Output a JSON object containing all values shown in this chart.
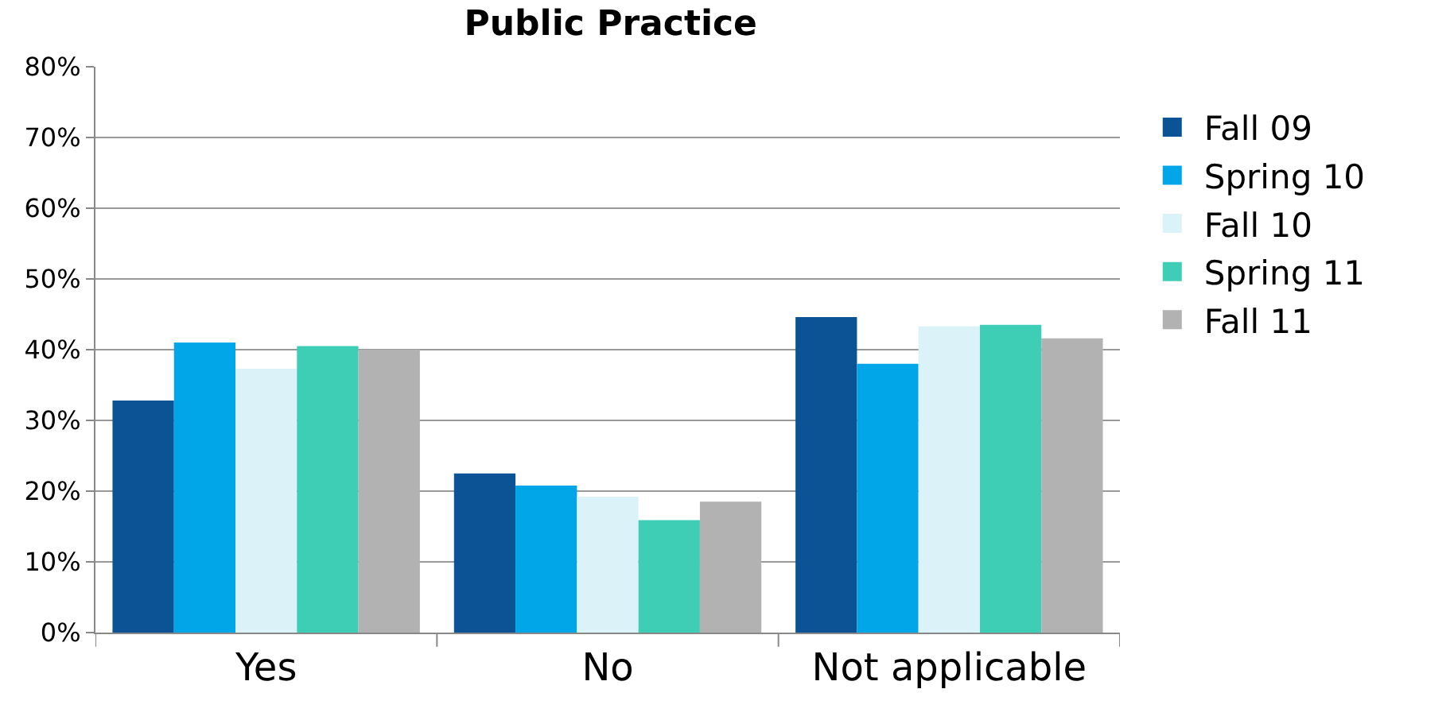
{
  "chart_data": {
    "type": "bar",
    "title": "Public Practice",
    "categories": [
      "Yes",
      "No",
      "Not applicable"
    ],
    "series": [
      {
        "name": "Fall 09",
        "color": "#0b5394",
        "values": [
          32.8,
          22.5,
          44.6
        ]
      },
      {
        "name": "Spring 10",
        "color": "#00a6e8",
        "values": [
          41.0,
          20.8,
          38.0
        ]
      },
      {
        "name": "Fall 10",
        "color": "#dbf3f8",
        "values": [
          37.3,
          19.2,
          43.3
        ]
      },
      {
        "name": "Spring 11",
        "color": "#3ecdb5",
        "values": [
          40.5,
          15.9,
          43.5
        ]
      },
      {
        "name": "Fall 11",
        "color": "#b2b2b2",
        "values": [
          40.0,
          18.5,
          41.6
        ]
      }
    ],
    "ylim": [
      0,
      80
    ],
    "yticks": [
      {
        "value": 0,
        "label": "0%"
      },
      {
        "value": 10,
        "label": "10%"
      },
      {
        "value": 20,
        "label": "20%"
      },
      {
        "value": 30,
        "label": "30%"
      },
      {
        "value": 40,
        "label": "40%"
      },
      {
        "value": 50,
        "label": "50%"
      },
      {
        "value": 60,
        "label": "60%"
      },
      {
        "value": 70,
        "label": "70%"
      },
      {
        "value": 80,
        "label": "80%"
      }
    ],
    "grid": "y",
    "legend": "right"
  }
}
